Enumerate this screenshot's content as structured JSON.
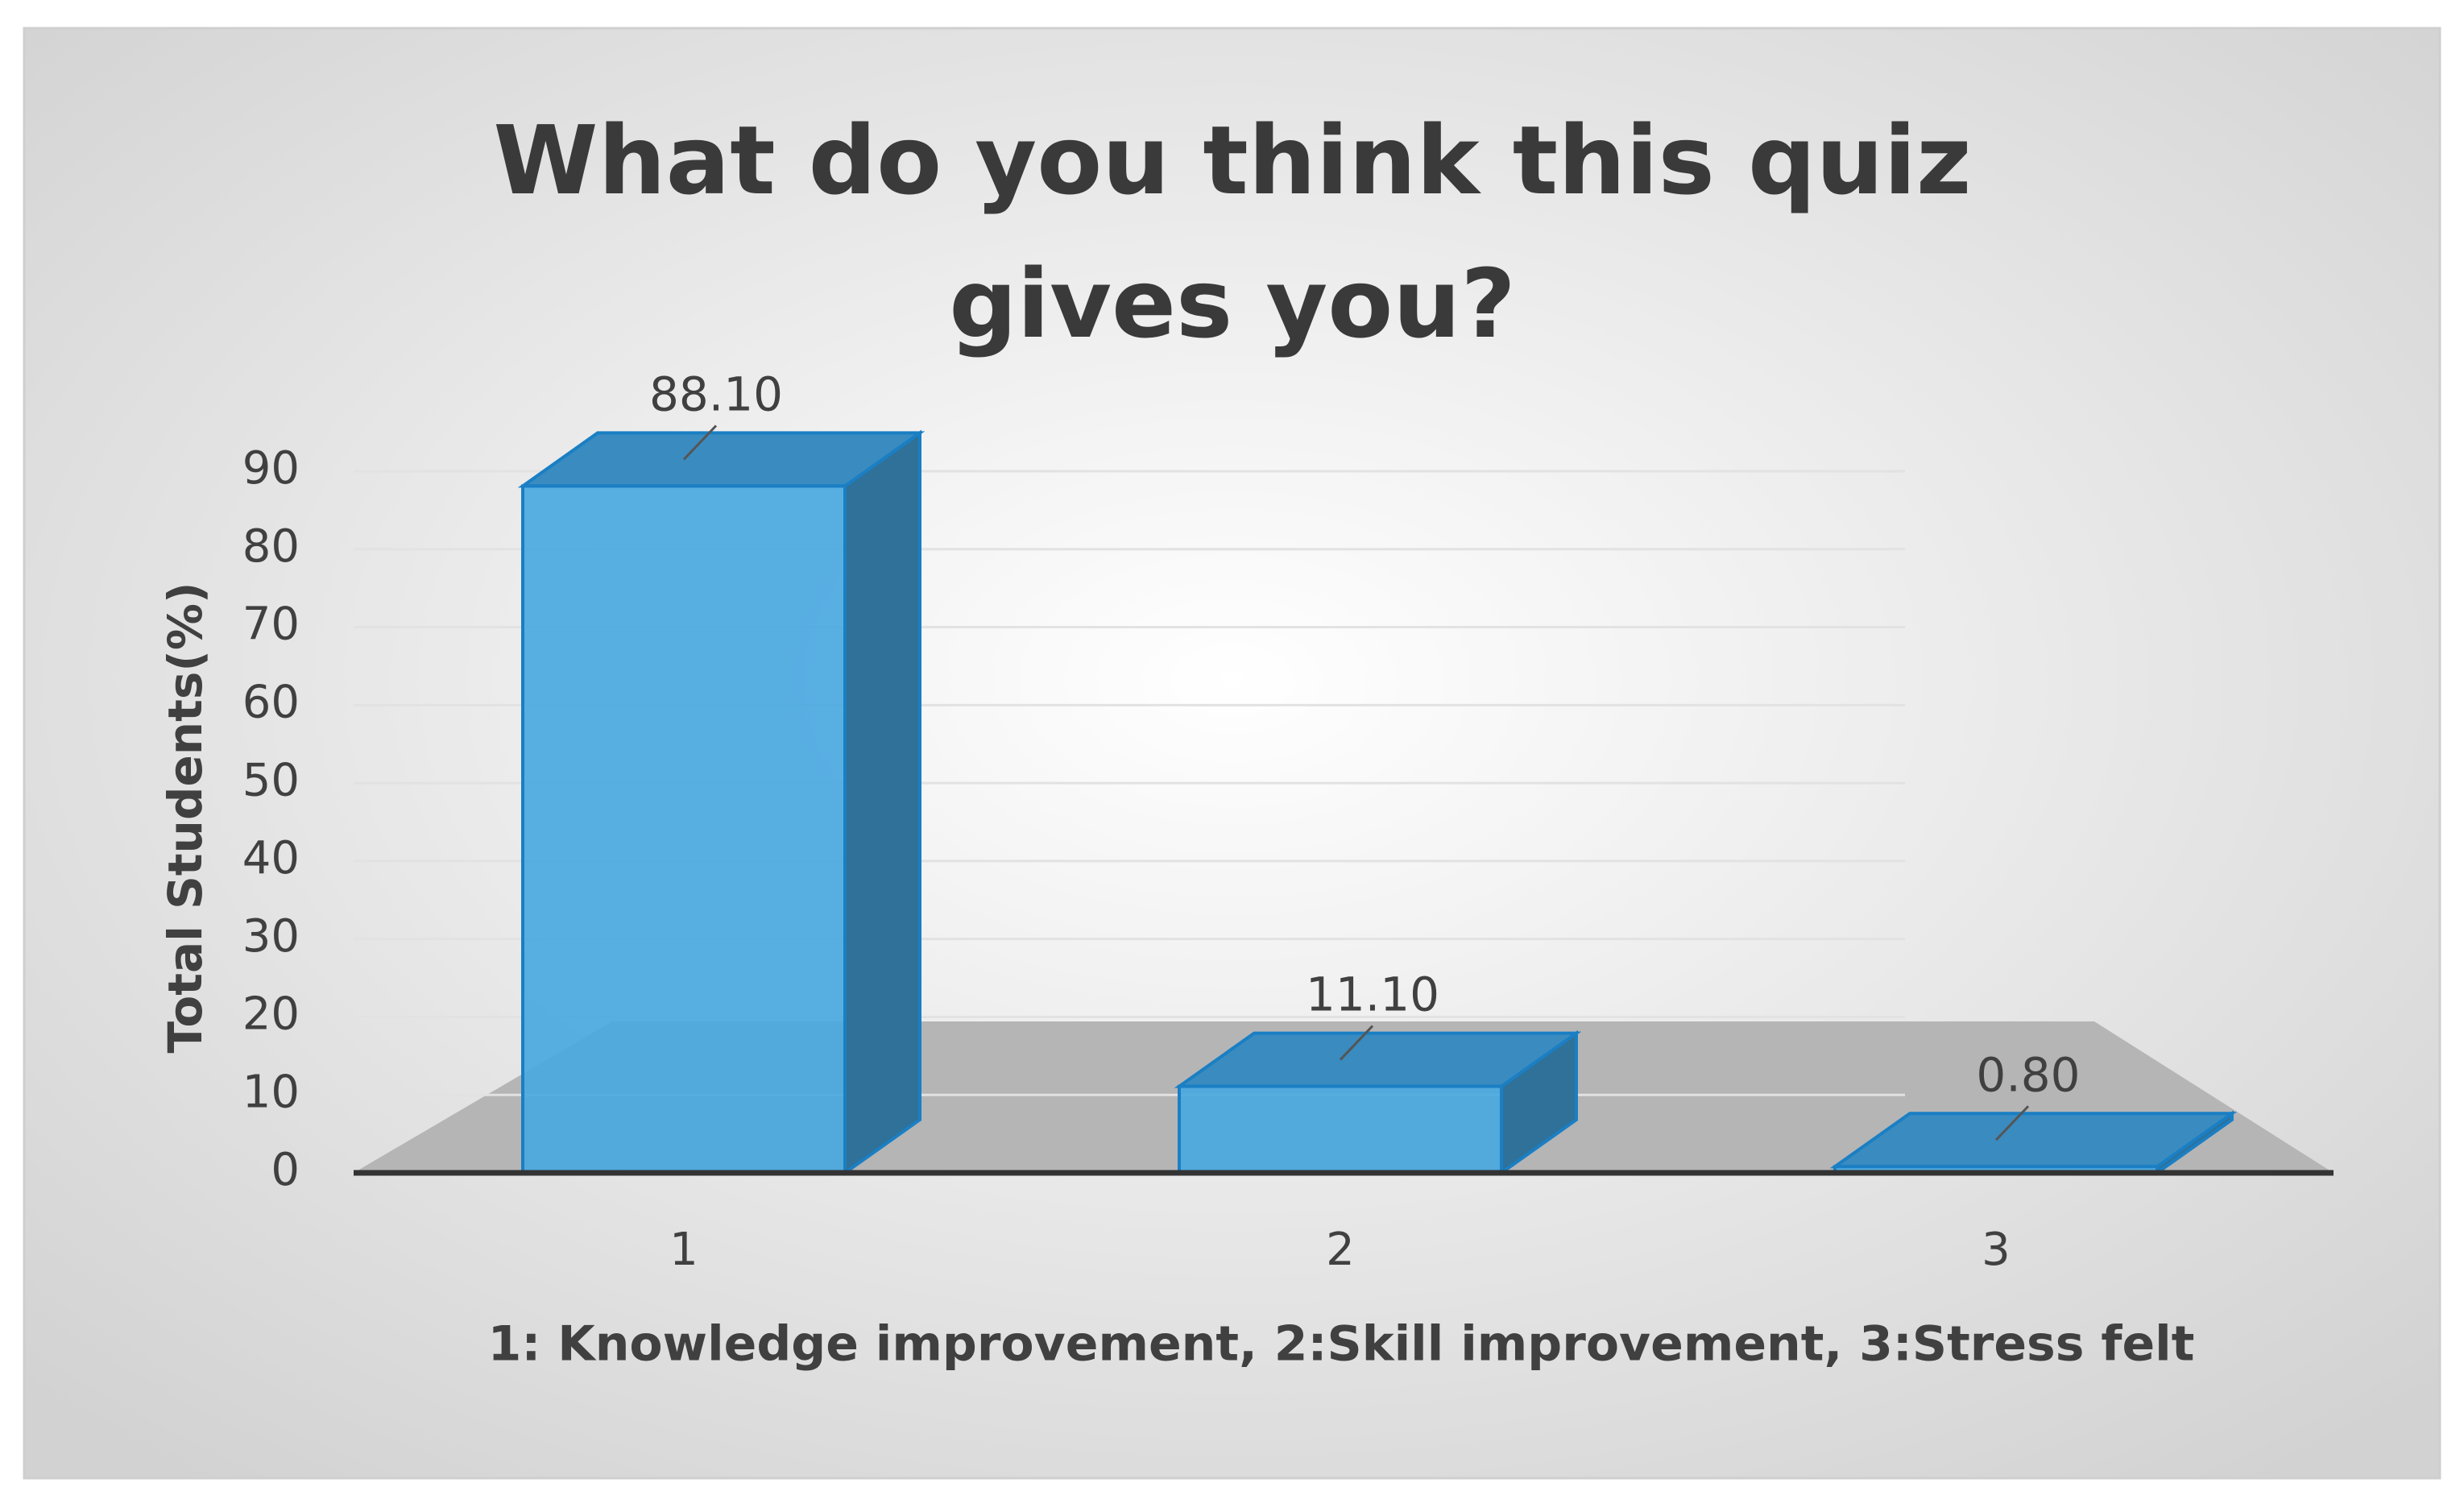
{
  "chart_data": {
    "type": "bar3d",
    "title": "What do you think this quiz gives you?",
    "categories": [
      "1",
      "2",
      "3"
    ],
    "values": [
      88.1,
      11.1,
      0.8
    ],
    "value_labels": [
      "88.10",
      "11.10",
      "0.80"
    ],
    "color": "#4aa8e0",
    "x_label": "1: Knowledge improvement,  2:Skill improvement,  3:Stress felt",
    "y_label": "Total  Students(%)",
    "ylim": [
      0,
      90
    ],
    "yticks": [
      0,
      10,
      20,
      30,
      40,
      50,
      60,
      70,
      80,
      90
    ],
    "grid": true
  }
}
